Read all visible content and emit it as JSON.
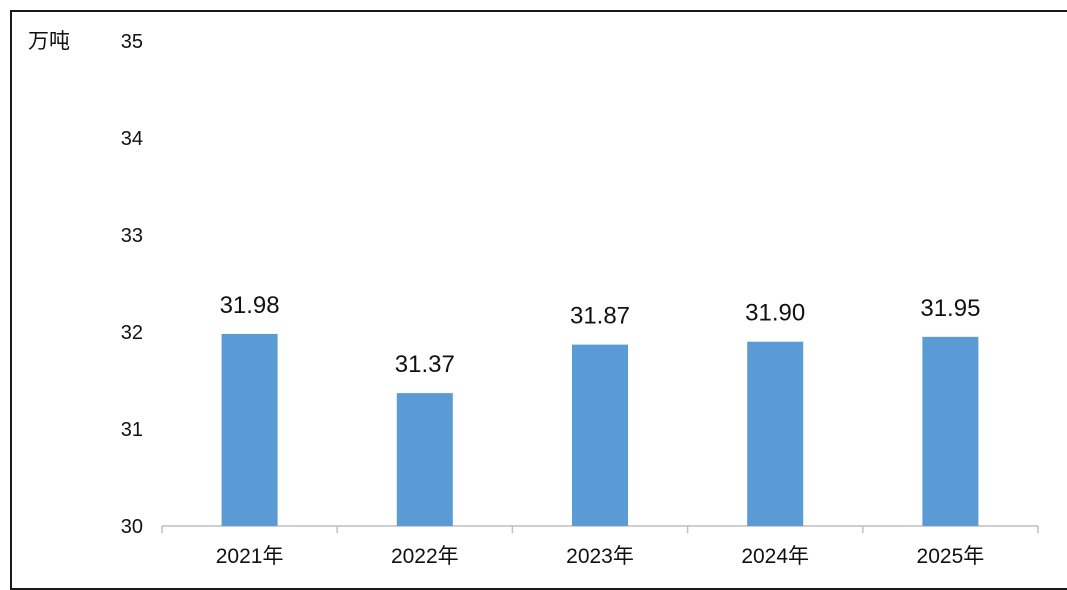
{
  "chart_data": {
    "type": "bar",
    "unit": "万吨",
    "categories": [
      "2021年",
      "2022年",
      "2023年",
      "2024年",
      "2025年"
    ],
    "values": [
      31.98,
      31.37,
      31.87,
      31.9,
      31.95
    ],
    "value_labels": [
      "31.98",
      "31.37",
      "31.87",
      "31.90",
      "31.95"
    ],
    "yticks": [
      "30",
      "31",
      "32",
      "33",
      "34",
      "35"
    ],
    "ylim": [
      30,
      35
    ],
    "grid": false,
    "bar_color": "#5B9BD5",
    "axis_color": "#bfbfbf"
  }
}
